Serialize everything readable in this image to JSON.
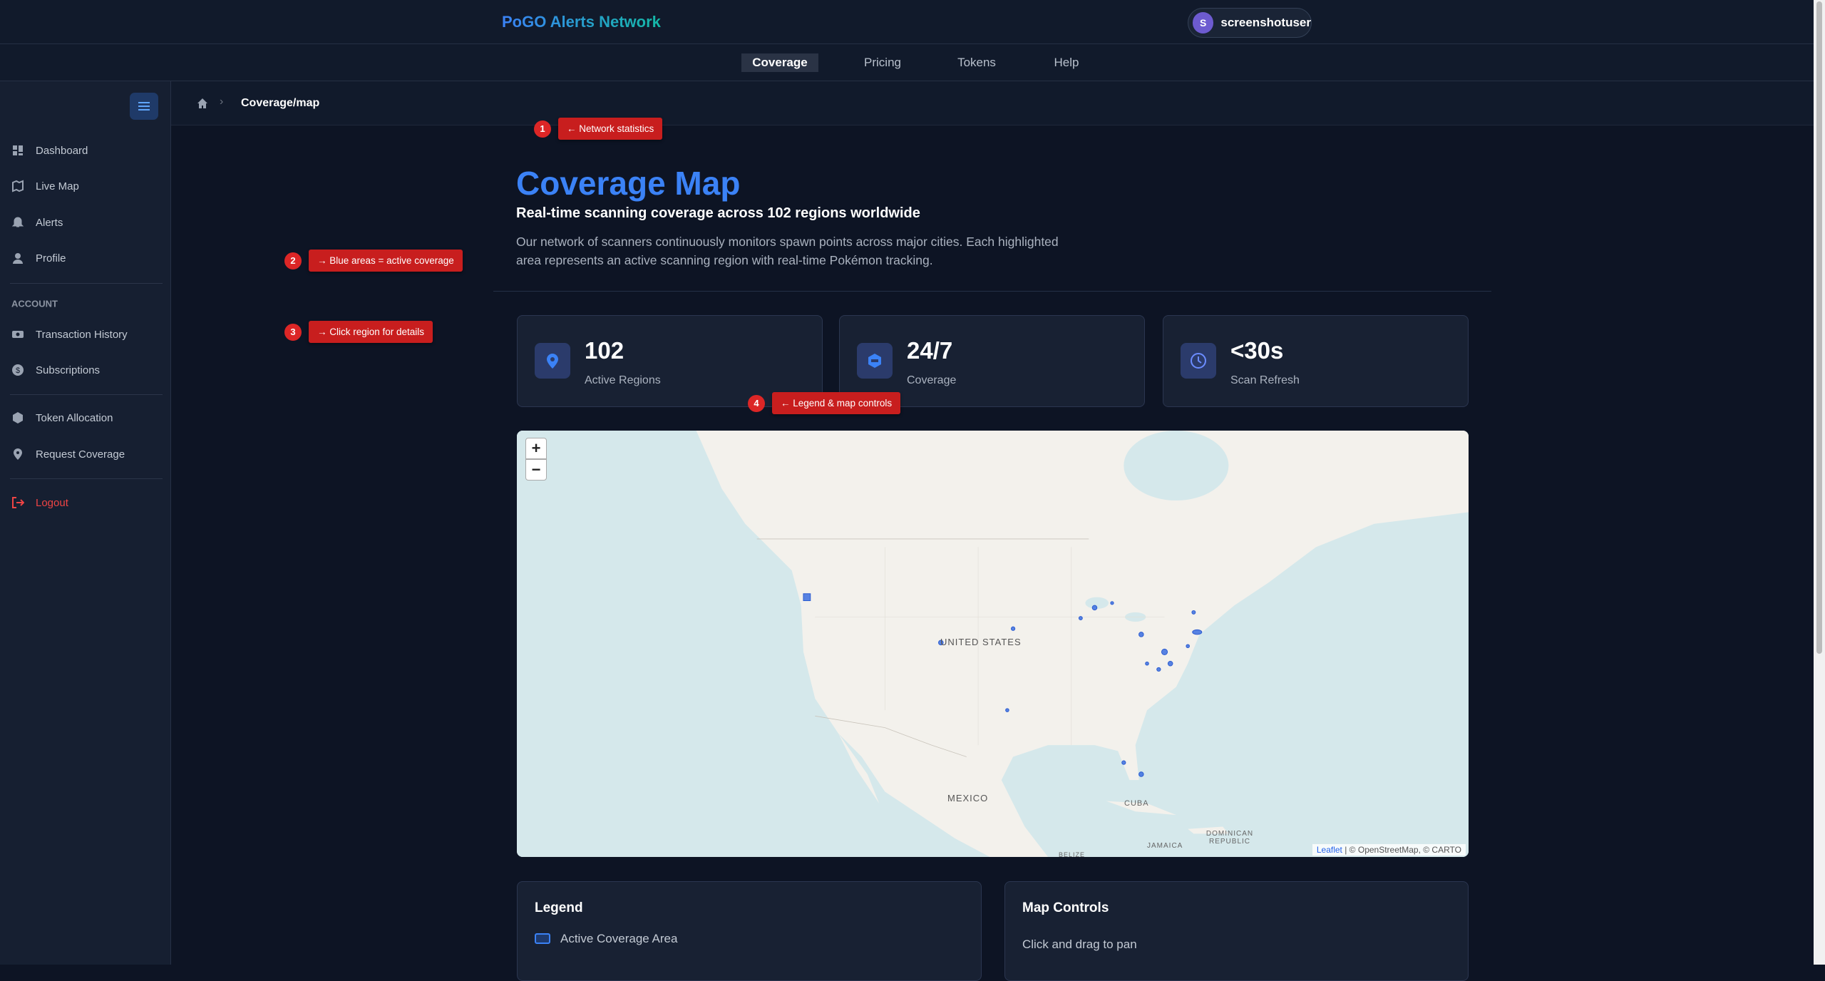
{
  "header": {
    "brand": "PoGO Alerts Network",
    "user": {
      "initial": "S",
      "name": "screenshotuser"
    }
  },
  "nav": [
    "Coverage",
    "Pricing",
    "Tokens",
    "Help"
  ],
  "breadcrumb": "Coverage/map",
  "sidebar": {
    "items": [
      "Dashboard",
      "Live Map",
      "Alerts",
      "Profile"
    ],
    "section": "ACCOUNT",
    "account_items": [
      "Transaction History",
      "Subscriptions"
    ],
    "more_items": [
      "Token Allocation",
      "Request Coverage"
    ],
    "logout": "Logout"
  },
  "page": {
    "title": "Coverage Map",
    "subtitle": "Real-time scanning coverage across 102 regions worldwide",
    "description": "Our network of scanners continuously monitors spawn points across major cities. Each highlighted area represents an active scanning region with real-time Pokémon tracking."
  },
  "stats": [
    {
      "value": "102",
      "label": "Active Regions"
    },
    {
      "value": "24/7",
      "label": "Coverage"
    },
    {
      "value": "<30s",
      "label": "Scan Refresh"
    }
  ],
  "map": {
    "zoom_in": "+",
    "zoom_out": "−",
    "labels": [
      "UNITED STATES",
      "MEXICO",
      "CUBA",
      "JAMAICA",
      "DOMINICAN REPUBLIC",
      "BELIZE"
    ],
    "attribution_link": "Leaflet",
    "attribution": "| © OpenStreetMap, © CARTO"
  },
  "legend": {
    "title": "Legend",
    "item": "Active Coverage Area"
  },
  "controls": {
    "title": "Map Controls",
    "text": "Click and drag to pan"
  },
  "annotations": [
    {
      "number": "1",
      "text": "← Network statistics"
    },
    {
      "number": "2",
      "text": "→ Blue areas = active coverage"
    },
    {
      "number": "3",
      "text": "→ Click region for details"
    },
    {
      "number": "4",
      "text": "← Legend & map controls"
    }
  ]
}
